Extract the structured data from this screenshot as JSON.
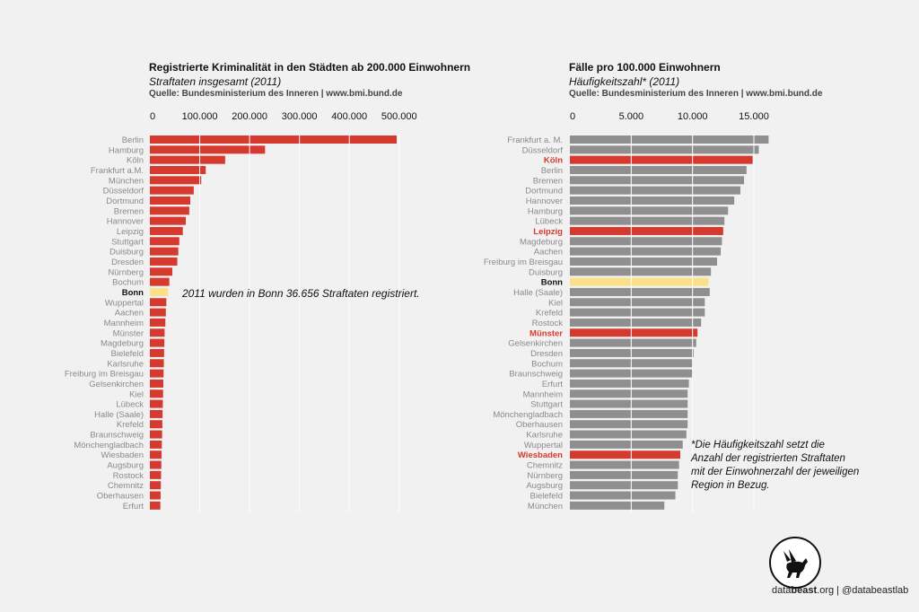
{
  "footer": {
    "brand_pre": "data",
    "brand_bold": "beast",
    "brand_post": ".org | @databeastlab"
  },
  "colors": {
    "red": "#d63a2f",
    "gray": "#8f8f8f",
    "highlight": "#fbe08a",
    "background": "#f1f1f1"
  },
  "chart_data": [
    {
      "type": "bar",
      "orientation": "horizontal",
      "title": "Registrierte Kriminalität in den Städten ab 200.000 Einwohnern",
      "subtitle": "Straftaten insgesamt (2011)",
      "source": "Quelle: Bundesministerium des Inneren | www.bmi.bund.de",
      "xlim": [
        0,
        500000
      ],
      "xticks": [
        "0",
        "100.000",
        "200.000",
        "300.000",
        "400.000",
        "500.000"
      ],
      "grid": true,
      "annotation": "2011 wurden in Bonn 36.656 Straftaten registriert.",
      "categories": [
        "Berlin",
        "Hamburg",
        "Köln",
        "Frankfurt a.M.",
        "München",
        "Düsseldorf",
        "Dortmund",
        "Bremen",
        "Hannover",
        "Leipzig",
        "Stuttgart",
        "Duisburg",
        "Dresden",
        "Nürnberg",
        "Bochum",
        "Bonn",
        "Wuppertal",
        "Aachen",
        "Mannheim",
        "Münster",
        "Magdeburg",
        "Bielefeld",
        "Karlsruhe",
        "Freiburg im Breisgau",
        "Gelsenkirchen",
        "Kiel",
        "Lübeck",
        "Halle (Saale)",
        "Krefeld",
        "Braunschweig",
        "Mönchengladbach",
        "Wiesbaden",
        "Augsburg",
        "Rostock",
        "Chemnitz",
        "Oberhausen",
        "Erfurt"
      ],
      "values": [
        495000,
        231000,
        151000,
        112000,
        103000,
        88000,
        81000,
        79000,
        72000,
        66000,
        59000,
        57000,
        55000,
        45000,
        39000,
        36656,
        33000,
        32000,
        31000,
        29500,
        29000,
        28500,
        28000,
        27500,
        27000,
        26500,
        26000,
        25500,
        25000,
        24500,
        24000,
        23500,
        23000,
        22500,
        22000,
        21500,
        21000
      ],
      "highlight": [
        "Bonn"
      ],
      "label_emphasis": [
        "Bonn"
      ]
    },
    {
      "type": "bar",
      "orientation": "horizontal",
      "title": "Fälle pro 100.000 Einwohnern",
      "subtitle": "Häufigkeitszahl* (2011)",
      "source": "Quelle: Bundesministerium des Inneren | www.bmi.bund.de",
      "xlim": [
        0,
        16000
      ],
      "xticks": [
        "0",
        "5.000",
        "10.000",
        "15.000"
      ],
      "grid": true,
      "annotation": "*Die Häufigkeitszahl setzt die\nAnzahl der registrierten Straftaten\nmit der Einwohnerzahl der jeweiligen\nRegion in Bezug.",
      "categories": [
        "Frankfurt a. M.",
        "Düsseldorf",
        "Köln",
        "Berlin",
        "Bremen",
        "Dortmund",
        "Hannover",
        "Hamburg",
        "Lübeck",
        "Leipzig",
        "Magdeburg",
        "Aachen",
        "Freiburg im Breisgau",
        "Duisburg",
        "Bonn",
        "Halle (Saale)",
        "Kiel",
        "Krefeld",
        "Rostock",
        "Münster",
        "Gelsenkirchen",
        "Dresden",
        "Bochum",
        "Braunschweig",
        "Erfurt",
        "Mannheim",
        "Stuttgart",
        "Mönchengladbach",
        "Oberhausen",
        "Karlsruhe",
        "Wuppertal",
        "Wiesbaden",
        "Chemnitz",
        "Nürnberg",
        "Augsburg",
        "Bielefeld",
        "München"
      ],
      "values": [
        16200,
        15400,
        14900,
        14400,
        14200,
        13900,
        13400,
        12900,
        12600,
        12500,
        12400,
        12300,
        12000,
        11500,
        11300,
        11400,
        11000,
        11000,
        10700,
        10400,
        10300,
        10100,
        10000,
        10000,
        9700,
        9600,
        9600,
        9600,
        9600,
        9500,
        9200,
        9000,
        8900,
        8800,
        8800,
        8600,
        7700
      ],
      "highlight": [
        "Bonn"
      ],
      "red": [
        "Köln",
        "Leipzig",
        "Münster",
        "Wiesbaden"
      ],
      "label_emphasis": [
        "Bonn",
        "Köln",
        "Leipzig",
        "Münster",
        "Wiesbaden"
      ]
    }
  ]
}
